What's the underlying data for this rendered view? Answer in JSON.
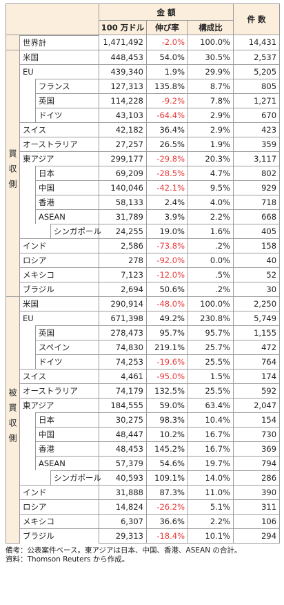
{
  "header": {
    "group": "金 額",
    "columns": [
      "100 万ドル",
      "伸び率",
      "構成比"
    ],
    "count": "件 数"
  },
  "world": {
    "name": "世界計",
    "value": "1,471,492",
    "growth": "-2.0%",
    "share": "100.0%",
    "count": "14,431"
  },
  "sections": [
    {
      "label": "買収側",
      "rows": [
        {
          "name": "米国",
          "level": 0,
          "value": "448,453",
          "growth": "54.0%",
          "share": "30.5%",
          "count": "2,537"
        },
        {
          "name": "EU",
          "level": 0,
          "value": "439,340",
          "growth": "1.9%",
          "share": "29.9%",
          "count": "5,205"
        },
        {
          "name": "フランス",
          "level": 1,
          "value": "127,313",
          "growth": "135.8%",
          "share": "8.7%",
          "count": "805"
        },
        {
          "name": "英国",
          "level": 1,
          "value": "114,228",
          "growth": "-9.2%",
          "share": "7.8%",
          "count": "1,271"
        },
        {
          "name": "ドイツ",
          "level": 1,
          "value": "43,103",
          "growth": "-64.4%",
          "share": "2.9%",
          "count": "670"
        },
        {
          "name": "スイス",
          "level": 0,
          "value": "42,182",
          "growth": "36.4%",
          "share": "2.9%",
          "count": "423"
        },
        {
          "name": "オーストラリア",
          "level": 0,
          "value": "27,257",
          "growth": "26.5%",
          "share": "1.9%",
          "count": "359"
        },
        {
          "name": "東アジア",
          "level": 0,
          "value": "299,177",
          "growth": "-29.8%",
          "share": "20.3%",
          "count": "3,117"
        },
        {
          "name": "日本",
          "level": 1,
          "value": "69,209",
          "growth": "-28.5%",
          "share": "4.7%",
          "count": "802"
        },
        {
          "name": "中国",
          "level": 1,
          "value": "140,046",
          "growth": "-42.1%",
          "share": "9.5%",
          "count": "929"
        },
        {
          "name": "香港",
          "level": 1,
          "value": "58,133",
          "growth": "2.4%",
          "share": "4.0%",
          "count": "718"
        },
        {
          "name": "ASEAN",
          "level": 1,
          "value": "31,789",
          "growth": "3.9%",
          "share": "2.2%",
          "count": "668"
        },
        {
          "name": "シンガポール",
          "level": 2,
          "value": "24,255",
          "growth": "19.0%",
          "share": "1.6%",
          "count": "405"
        },
        {
          "name": "インド",
          "level": 0,
          "value": "2,586",
          "growth": "-73.8%",
          "share": ".2%",
          "count": "158"
        },
        {
          "name": "ロシア",
          "level": 0,
          "value": "278",
          "growth": "-92.0%",
          "share": "0.0%",
          "count": "40"
        },
        {
          "name": "メキシコ",
          "level": 0,
          "value": "7,123",
          "growth": "-12.0%",
          "share": ".5%",
          "count": "52"
        },
        {
          "name": "ブラジル",
          "level": 0,
          "value": "2,694",
          "growth": "50.6%",
          "share": ".2%",
          "count": "30"
        }
      ]
    },
    {
      "label": "被買収側",
      "rows": [
        {
          "name": "米国",
          "level": 0,
          "value": "290,914",
          "growth": "-48.0%",
          "share": "100.0%",
          "count": "2,250"
        },
        {
          "name": "EU",
          "level": 0,
          "value": "671,398",
          "growth": "49.2%",
          "share": "230.8%",
          "count": "5,749"
        },
        {
          "name": "英国",
          "level": 1,
          "value": "278,473",
          "growth": "95.7%",
          "share": "95.7%",
          "count": "1,155"
        },
        {
          "name": "スペイン",
          "level": 1,
          "value": "74,830",
          "growth": "219.1%",
          "share": "25.7%",
          "count": "472"
        },
        {
          "name": "ドイツ",
          "level": 1,
          "value": "74,253",
          "growth": "-19.6%",
          "share": "25.5%",
          "count": "764"
        },
        {
          "name": "スイス",
          "level": 0,
          "value": "4,461",
          "growth": "-95.0%",
          "share": "1.5%",
          "count": "174"
        },
        {
          "name": "オーストラリア",
          "level": 0,
          "value": "74,179",
          "growth": "132.5%",
          "share": "25.5%",
          "count": "592"
        },
        {
          "name": "東アジア",
          "level": 0,
          "value": "184,555",
          "growth": "59.0%",
          "share": "63.4%",
          "count": "2,047"
        },
        {
          "name": "日本",
          "level": 1,
          "value": "30,275",
          "growth": "98.3%",
          "share": "10.4%",
          "count": "154"
        },
        {
          "name": "中国",
          "level": 1,
          "value": "48,447",
          "growth": "10.2%",
          "share": "16.7%",
          "count": "730"
        },
        {
          "name": "香港",
          "level": 1,
          "value": "48,453",
          "growth": "145.2%",
          "share": "16.7%",
          "count": "369"
        },
        {
          "name": "ASEAN",
          "level": 1,
          "value": "57,379",
          "growth": "54.6%",
          "share": "19.7%",
          "count": "794"
        },
        {
          "name": "シンガポール",
          "level": 2,
          "value": "40,593",
          "growth": "109.1%",
          "share": "14.0%",
          "count": "286"
        },
        {
          "name": "インド",
          "level": 0,
          "value": "31,888",
          "growth": "87.3%",
          "share": "11.0%",
          "count": "390"
        },
        {
          "name": "ロシア",
          "level": 0,
          "value": "14,824",
          "growth": "-26.2%",
          "share": "5.1%",
          "count": "311"
        },
        {
          "name": "メキシコ",
          "level": 0,
          "value": "6,307",
          "growth": "36.6%",
          "share": "2.2%",
          "count": "106"
        },
        {
          "name": "ブラジル",
          "level": 0,
          "value": "29,313",
          "growth": "-18.4%",
          "share": "10.1%",
          "count": "294"
        }
      ]
    }
  ],
  "notes": [
    "備考：公表案件ベース。東アジアは日本、中国、香港、ASEAN の合計。",
    "資料：Thomson Reuters から作成。"
  ]
}
